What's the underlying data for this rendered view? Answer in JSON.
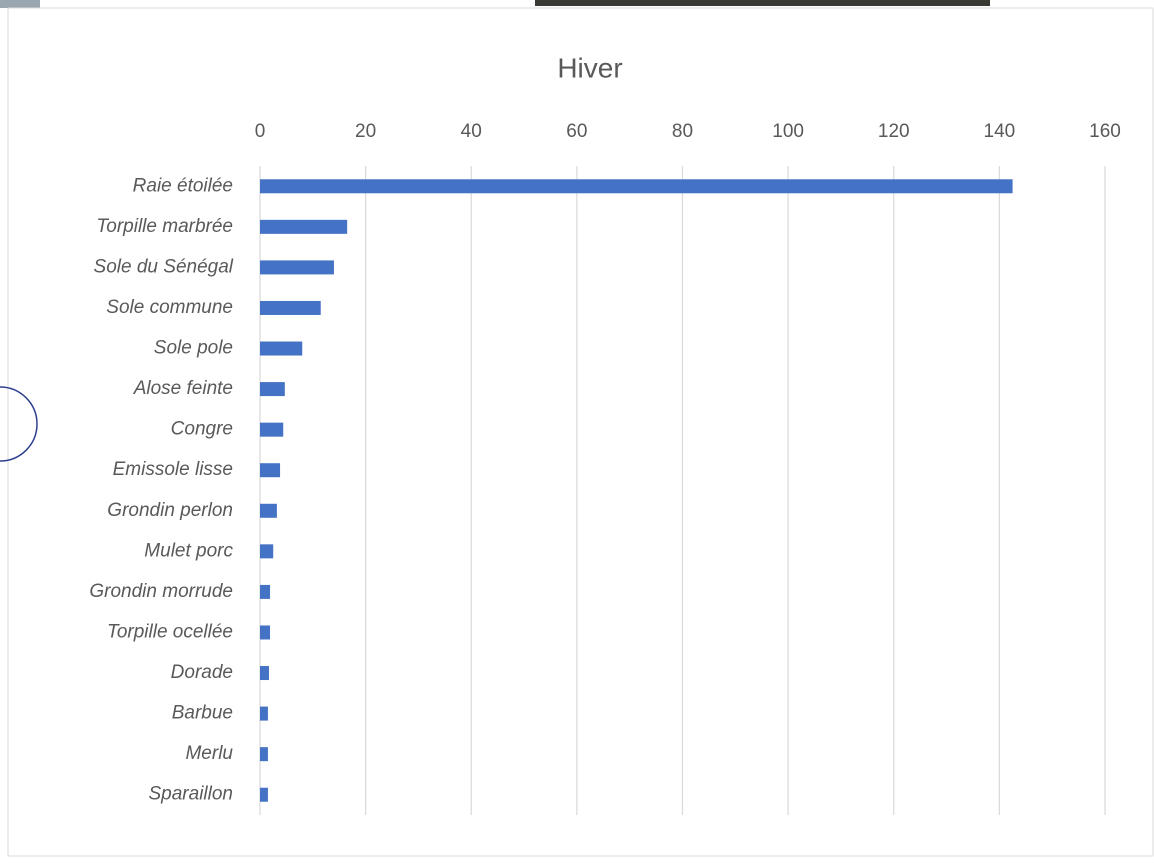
{
  "chart_data": {
    "type": "bar",
    "horizontal": true,
    "title": "Hiver",
    "categories": [
      "Raie étoilée",
      "Torpille marbrée",
      "Sole du Sénégal",
      "Sole commune",
      "Sole pole",
      "Alose feinte",
      "Congre",
      "Emissole lisse",
      "Grondin perlon",
      "Mulet porc",
      "Grondin morrude",
      "Torpille ocellée",
      "Dorade",
      "Barbue",
      "Merlu",
      "Sparaillon"
    ],
    "values": [
      142.5,
      16.5,
      14,
      11.5,
      8,
      4.7,
      4.4,
      3.8,
      3.2,
      2.5,
      1.9,
      1.9,
      1.7,
      1.5,
      1.5,
      1.5
    ],
    "color": "#4472c4",
    "xlim": [
      0,
      160
    ],
    "xticks": [
      0,
      20,
      40,
      60,
      80,
      100,
      120,
      140,
      160
    ],
    "grid": true
  }
}
